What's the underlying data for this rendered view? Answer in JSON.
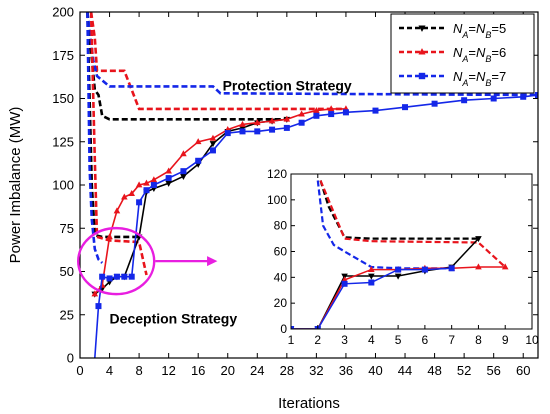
{
  "chart_data": {
    "type": "line",
    "xlabel": "Iterations",
    "ylabel": "Power Imbalance (MW)",
    "xlim": [
      0,
      62
    ],
    "ylim": [
      0,
      200
    ],
    "x_ticks": [
      0,
      4,
      8,
      12,
      16,
      20,
      24,
      28,
      32,
      36,
      40,
      44,
      48,
      52,
      56,
      60
    ],
    "y_ticks": [
      0,
      25,
      50,
      75,
      100,
      125,
      150,
      175,
      200
    ],
    "legend_position": "top-right",
    "colors": {
      "n5": "#000000",
      "n6": "#e8141c",
      "n7": "#1427e8",
      "highlight": "#e81ee0"
    },
    "legend": [
      {
        "id": "n5",
        "pre": "N",
        "sub1": "A",
        "mid": "=N",
        "sub2": "B",
        "post": "=5",
        "color": "#000000",
        "marker": "triangle-down"
      },
      {
        "id": "n6",
        "pre": "N",
        "sub1": "A",
        "mid": "=N",
        "sub2": "B",
        "post": "=6",
        "color": "#e8141c",
        "marker": "triangle-up"
      },
      {
        "id": "n7",
        "pre": "N",
        "sub1": "A",
        "mid": "=N",
        "sub2": "B",
        "post": "=7",
        "color": "#1427e8",
        "marker": "square"
      }
    ],
    "series": [
      {
        "id": "n5",
        "name": "protection",
        "style": "dashed",
        "color": "#000000",
        "x": [
          1,
          2,
          2.5,
          3,
          4,
          28
        ],
        "y": [
          200,
          155,
          152,
          140,
          138,
          138
        ]
      },
      {
        "id": "n6",
        "name": "protection",
        "style": "dashed",
        "color": "#e8141c",
        "x": [
          1.5,
          2,
          2.3,
          6,
          7,
          8,
          36
        ],
        "y": [
          200,
          185,
          166,
          166,
          155,
          144,
          144
        ]
      },
      {
        "id": "n7",
        "name": "protection",
        "style": "dashed",
        "color": "#1427e8",
        "x": [
          1,
          1.8,
          2.3,
          4,
          18,
          19,
          62
        ],
        "y": [
          200,
          172,
          163,
          157,
          157,
          153,
          152
        ]
      },
      {
        "id": "n5",
        "name": "deception",
        "style": "dashed",
        "color": "#000000",
        "x": [
          1,
          1.6,
          2,
          3,
          4,
          8
        ],
        "y": [
          200,
          100,
          71,
          70,
          70,
          70
        ]
      },
      {
        "id": "n6",
        "name": "deception",
        "style": "dashed",
        "color": "#e8141c",
        "x": [
          1.5,
          2,
          2.3,
          4,
          8,
          9
        ],
        "y": [
          200,
          115,
          70,
          68,
          67,
          48
        ]
      },
      {
        "id": "n7",
        "name": "deception",
        "style": "dashed",
        "color": "#1427e8",
        "x": [
          1,
          1.3,
          1.6,
          2,
          2.5,
          3
        ],
        "y": [
          200,
          110,
          80,
          63,
          57,
          55
        ]
      },
      {
        "id": "n5",
        "name": "main",
        "style": "solid",
        "marker": "triangle-down",
        "color": "#000000",
        "x": [
          2,
          3,
          4,
          5,
          6,
          8,
          9,
          10,
          12,
          14,
          16,
          18,
          20,
          22,
          24,
          26,
          28
        ],
        "y": [
          37,
          40,
          44,
          47,
          47,
          70,
          96,
          98,
          101,
          105,
          112,
          124,
          131,
          133,
          136,
          137,
          138
        ]
      },
      {
        "id": "n6",
        "name": "main",
        "style": "solid",
        "marker": "triangle-up",
        "color": "#e8141c",
        "x": [
          2,
          3,
          4,
          5,
          6,
          7,
          8,
          9,
          10,
          12,
          14,
          16,
          18,
          20,
          22,
          24,
          26,
          28,
          30,
          32,
          34,
          36
        ],
        "y": [
          37,
          42,
          70,
          85,
          93,
          95,
          100,
          101,
          103,
          108,
          118,
          125,
          127,
          132,
          135,
          136,
          137,
          138,
          141,
          143,
          144,
          144
        ]
      },
      {
        "id": "n7",
        "name": "main",
        "style": "solid",
        "marker": "square",
        "color": "#1427e8",
        "x": [
          2,
          2.5,
          3,
          4,
          5,
          6,
          7,
          8,
          9,
          10,
          12,
          14,
          16,
          18,
          20,
          22,
          24,
          26,
          28,
          30,
          32,
          34,
          36,
          40,
          44,
          48,
          52,
          56,
          60,
          62
        ],
        "y": [
          0,
          30,
          47,
          46,
          47,
          47,
          47,
          90,
          97,
          100,
          104,
          108,
          114,
          120,
          130,
          131,
          131,
          132,
          133,
          136,
          140,
          141,
          142,
          143,
          145,
          147,
          149,
          150,
          151,
          152
        ]
      }
    ],
    "annotations": {
      "protection": "Protection Strategy",
      "deception": "Deception Strategy"
    },
    "inset": {
      "xlim": [
        1,
        10
      ],
      "ylim": [
        0,
        120
      ],
      "x_ticks": [
        1,
        2,
        3,
        4,
        5,
        6,
        7,
        8,
        9,
        10
      ],
      "y_ticks": [
        0,
        20,
        40,
        60,
        80,
        100,
        120
      ],
      "series": [
        {
          "id": "n5",
          "style": "dashed",
          "color": "#000000",
          "x": [
            2.1,
            2.4,
            3,
            4,
            8
          ],
          "y": [
            115,
            95,
            71,
            70,
            70
          ]
        },
        {
          "id": "n6",
          "style": "dashed",
          "color": "#e8141c",
          "x": [
            2.1,
            2.4,
            3,
            4,
            8,
            9
          ],
          "y": [
            115,
            100,
            70,
            68,
            67,
            48
          ]
        },
        {
          "id": "n7",
          "style": "dashed",
          "color": "#1427e8",
          "x": [
            2,
            2.2,
            2.6,
            3,
            4,
            5,
            6,
            7
          ],
          "y": [
            115,
            80,
            65,
            60,
            48,
            47,
            47,
            47
          ]
        },
        {
          "id": "n5",
          "style": "solid",
          "marker": "triangle-down",
          "color": "#000000",
          "x": [
            1,
            2,
            3,
            4,
            5,
            6,
            7,
            8
          ],
          "y": [
            0,
            0,
            41,
            41,
            41,
            45,
            48,
            70
          ]
        },
        {
          "id": "n6",
          "style": "solid",
          "marker": "triangle-up",
          "color": "#e8141c",
          "x": [
            1,
            2,
            3,
            4,
            5,
            6,
            7,
            8,
            9
          ],
          "y": [
            0,
            0,
            38,
            46,
            46,
            47,
            47,
            48,
            48
          ]
        },
        {
          "id": "n7",
          "style": "solid",
          "marker": "square",
          "color": "#1427e8",
          "x": [
            1,
            2,
            3,
            4,
            5,
            6,
            7
          ],
          "y": [
            0,
            0,
            35,
            36,
            46,
            46,
            47
          ]
        }
      ]
    }
  }
}
